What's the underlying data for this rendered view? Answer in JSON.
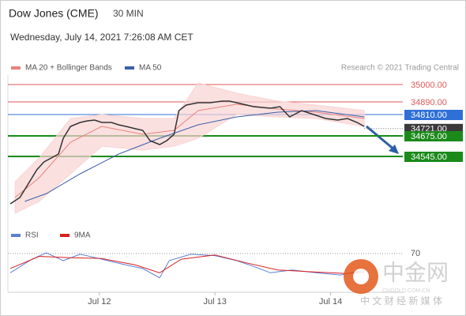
{
  "header": {
    "title": "Dow Jones (CME)",
    "interval": "30 MIN",
    "date": "Wednesday, July 14, 2021 7:26:08 AM CET"
  },
  "credit": "Research © 2021 Trading Central",
  "watermark": {
    "brand": "中金网",
    "site": "CNGOLD.COM.CN",
    "slogan": "中 文 财 经 新 媒 体"
  },
  "chart_data": [
    {
      "type": "line",
      "xlim": [
        0,
        164
      ],
      "ylim": [
        34135,
        35060
      ],
      "xticks": [
        {
          "value": 38,
          "label": "Jul 12"
        },
        {
          "value": 86,
          "label": "Jul 13"
        },
        {
          "value": 134,
          "label": "Jul 14"
        }
      ],
      "price": {
        "color": "#333333",
        "x": [
          1,
          5,
          8,
          12,
          15,
          18,
          21,
          23,
          26,
          30,
          33,
          36,
          39,
          43,
          46,
          49,
          53,
          56,
          59,
          63,
          66,
          69,
          71,
          74,
          79,
          84,
          89,
          92,
          95,
          102,
          109,
          113,
          117,
          122,
          127,
          132,
          137,
          141,
          145,
          148
        ],
        "values": [
          34245,
          34285,
          34360,
          34460,
          34510,
          34535,
          34560,
          34660,
          34735,
          34760,
          34770,
          34775,
          34760,
          34760,
          34745,
          34735,
          34720,
          34710,
          34645,
          34620,
          34645,
          34685,
          34835,
          34870,
          34885,
          34885,
          34895,
          34895,
          34885,
          34860,
          34850,
          34860,
          34795,
          34835,
          34810,
          34785,
          34775,
          34785,
          34760,
          34735
        ]
      },
      "series": [
        {
          "name": "MA 20 + Bollinger Bands",
          "color": "#e8837c",
          "band_color": "#f9d3d3",
          "x": [
            3,
            13,
            26,
            39,
            56,
            69,
            79,
            95,
            112,
            128,
            148
          ],
          "values": [
            34285,
            34410,
            34635,
            34735,
            34685,
            34710,
            34835,
            34875,
            34845,
            34825,
            34785
          ],
          "upper": [
            34385,
            34535,
            34785,
            34810,
            34785,
            34785,
            35010,
            34945,
            34895,
            34870,
            34835
          ],
          "lower": [
            34185,
            34260,
            34435,
            34610,
            34585,
            34610,
            34660,
            34810,
            34795,
            34785,
            34735
          ]
        },
        {
          "name": "MA 50",
          "color": "#3b5fa8",
          "x": [
            7,
            16,
            30,
            46,
            63,
            79,
            95,
            112,
            128,
            148
          ],
          "values": [
            34260,
            34310,
            34435,
            34560,
            34660,
            34745,
            34795,
            34825,
            34835,
            34795
          ]
        }
      ],
      "levels": [
        {
          "value": 35000,
          "label": "35000.00",
          "color": "#e05a5a",
          "style": "text"
        },
        {
          "value": 34890,
          "label": "34890.00",
          "color": "#e05a5a",
          "style": "text"
        },
        {
          "value": 34810,
          "label": "34810.00",
          "color": "#2f6fd6",
          "style": "box"
        },
        {
          "value": 34721,
          "label": "34721.00",
          "color": "#3a3a3a",
          "style": "current"
        },
        {
          "value": 34675,
          "label": "34675.00",
          "color": "#1a8a1a",
          "style": "box"
        },
        {
          "value": 34545,
          "label": "34545.00",
          "color": "#1a8a1a",
          "style": "box"
        }
      ]
    },
    {
      "type": "line",
      "xlim": [
        0,
        164
      ],
      "ylim": [
        18,
        82
      ],
      "yticks": [
        70
      ],
      "series": [
        {
          "name": "RSI",
          "color": "#5b7fd6",
          "x": [
            1,
            10,
            16,
            23,
            30,
            39,
            49,
            56,
            63,
            67,
            76,
            86,
            95,
            102,
            109,
            118,
            128,
            138,
            148
          ],
          "values": [
            43,
            62,
            71,
            60,
            69,
            62,
            54,
            49,
            36,
            60,
            69,
            67,
            60,
            52,
            43,
            47,
            43,
            40,
            47
          ]
        },
        {
          "name": "9MA",
          "color": "#d92020",
          "x": [
            1,
            13,
            26,
            39,
            53,
            63,
            72,
            86,
            99,
            112,
            128,
            141,
            148
          ],
          "values": [
            49,
            66,
            64,
            63,
            54,
            43,
            62,
            68,
            57,
            47,
            44,
            42,
            44
          ]
        }
      ]
    }
  ]
}
